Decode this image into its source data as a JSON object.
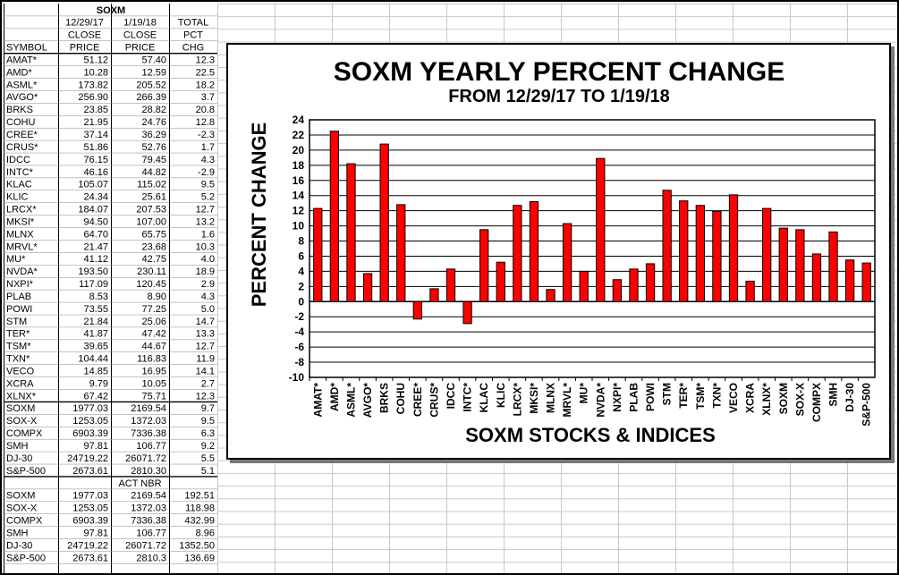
{
  "table": {
    "title": "SOXM",
    "header_row1": [
      "",
      "12/29/17",
      "1/19/18",
      "TOTAL"
    ],
    "header_row2": [
      "",
      "CLOSE",
      "CLOSE",
      "PCT"
    ],
    "header_row3": [
      "SYMBOL",
      "PRICE",
      "PRICE",
      "CHG"
    ],
    "rows": [
      [
        "AMAT*",
        "51.12",
        "57.40",
        "12.3"
      ],
      [
        "AMD*",
        "10.28",
        "12.59",
        "22.5"
      ],
      [
        "ASML*",
        "173.82",
        "205.52",
        "18.2"
      ],
      [
        "AVGO*",
        "256.90",
        "266.39",
        "3.7"
      ],
      [
        "BRKS",
        "23.85",
        "28.82",
        "20.8"
      ],
      [
        "COHU",
        "21.95",
        "24.76",
        "12.8"
      ],
      [
        "CREE*",
        "37.14",
        "36.29",
        "-2.3"
      ],
      [
        "CRUS*",
        "51.86",
        "52.76",
        "1.7"
      ],
      [
        "IDCC",
        "76.15",
        "79.45",
        "4.3"
      ],
      [
        "INTC*",
        "46.16",
        "44.82",
        "-2.9"
      ],
      [
        "KLAC",
        "105.07",
        "115.02",
        "9.5"
      ],
      [
        "KLIC",
        "24.34",
        "25.61",
        "5.2"
      ],
      [
        "LRCX*",
        "184.07",
        "207.53",
        "12.7"
      ],
      [
        "MKSI*",
        "94.50",
        "107.00",
        "13.2"
      ],
      [
        "MLNX",
        "64.70",
        "65.75",
        "1.6"
      ],
      [
        "MRVL*",
        "21.47",
        "23.68",
        "10.3"
      ],
      [
        "MU*",
        "41.12",
        "42.75",
        "4.0"
      ],
      [
        "NVDA*",
        "193.50",
        "230.11",
        "18.9"
      ],
      [
        "NXPI*",
        "117.09",
        "120.45",
        "2.9"
      ],
      [
        "PLAB",
        "8.53",
        "8.90",
        "4.3"
      ],
      [
        "POWI",
        "73.55",
        "77.25",
        "5.0"
      ],
      [
        "STM",
        "21.84",
        "25.06",
        "14.7"
      ],
      [
        "TER*",
        "41.87",
        "47.42",
        "13.3"
      ],
      [
        "TSM*",
        "39.65",
        "44.67",
        "12.7"
      ],
      [
        "TXN*",
        "104.44",
        "116.83",
        "11.9"
      ],
      [
        "VECO",
        "14.85",
        "16.95",
        "14.1"
      ],
      [
        "XCRA",
        "9.79",
        "10.05",
        "2.7"
      ],
      [
        "XLNX*",
        "67.42",
        "75.71",
        "12.3"
      ]
    ],
    "index_rows": [
      [
        "SOXM",
        "1977.03",
        "2169.54",
        "9.7"
      ],
      [
        "SOX-X",
        "1253.05",
        "1372.03",
        "9.5"
      ],
      [
        "COMPX",
        "6903.39",
        "7336.38",
        "6.3"
      ],
      [
        "SMH",
        "97.81",
        "106.77",
        "9.2"
      ],
      [
        "DJ-30",
        "24719.22",
        "26071.72",
        "5.5"
      ],
      [
        "S&P-500",
        "2673.61",
        "2810.30",
        "5.1"
      ]
    ],
    "act_nbr_label": "ACT NBR",
    "act_rows": [
      [
        "SOXM",
        "1977.03",
        "2169.54",
        "192.51"
      ],
      [
        "SOX-X",
        "1253.05",
        "1372.03",
        "118.98"
      ],
      [
        "COMPX",
        "6903.39",
        "7336.38",
        "432.99"
      ],
      [
        "SMH",
        "97.81",
        "106.77",
        "8.96"
      ],
      [
        "DJ-30",
        "24719.22",
        "26071.72",
        "1352.50"
      ],
      [
        "S&P-500",
        "2673.61",
        "2810.3",
        "136.69"
      ]
    ]
  },
  "colors": {
    "bar": "#ff0000",
    "negative_text": "#ff0000",
    "grid": "#000000",
    "sheet_grid": "#c8c8c8"
  },
  "chart_data": {
    "type": "bar",
    "title": "SOXM YEARLY PERCENT CHANGE",
    "subtitle": "FROM 12/29/17 TO 1/19/18",
    "xlabel": "SOXM STOCKS & INDICES",
    "ylabel": "PERCENT CHANGE",
    "ylim": [
      -10,
      24
    ],
    "ytick_step": 2,
    "grid": true,
    "legend": "none",
    "categories": [
      "AMAT*",
      "AMD*",
      "ASML*",
      "AVGO*",
      "BRKS",
      "COHU",
      "CREE*",
      "CRUS*",
      "IDCC",
      "INTC*",
      "KLAC",
      "KLIC",
      "LRCX*",
      "MKSI*",
      "MLNX",
      "MRVL*",
      "MU*",
      "NVDA*",
      "NXPI*",
      "PLAB",
      "POWI",
      "STM",
      "TER*",
      "TSM*",
      "TXN*",
      "VECO",
      "XCRA",
      "XLNX*",
      "SOXM",
      "SOX-X",
      "COMPX",
      "SMH",
      "DJ-30",
      "S&P-500"
    ],
    "values": [
      12.3,
      22.5,
      18.2,
      3.7,
      20.8,
      12.8,
      -2.3,
      1.7,
      4.3,
      -2.9,
      9.5,
      5.2,
      12.7,
      13.2,
      1.6,
      10.3,
      4.0,
      18.9,
      2.9,
      4.3,
      5.0,
      14.7,
      13.3,
      12.7,
      11.9,
      14.1,
      2.7,
      12.3,
      9.7,
      9.5,
      6.3,
      9.2,
      5.5,
      5.1
    ]
  }
}
